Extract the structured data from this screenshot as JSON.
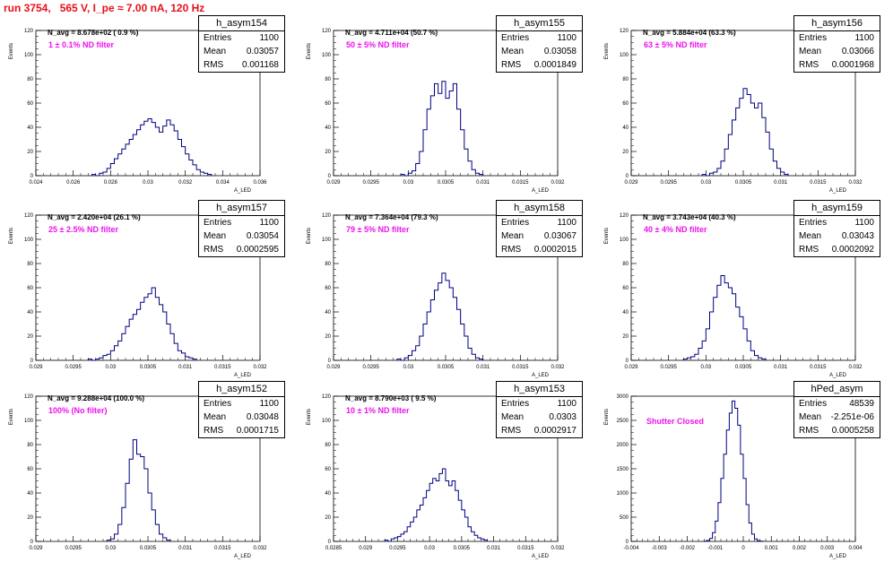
{
  "title": "run 3754,   565 V, I_pe ≈ 7.00 nA, 120 Hz",
  "colors": {
    "title": "#e8101a",
    "annotation": "#ee12ee",
    "histogram": "#000080"
  },
  "panels": [
    {
      "hist_name": "h_asym154",
      "n_avg": "N_avg = 8.678e+02 ( 0.9 %)",
      "filter_note": "1 ± 0.1% ND filter",
      "stats": [
        {
          "k": "Entries",
          "v": "1100"
        },
        {
          "k": "Mean",
          "v": "0.03057"
        },
        {
          "k": "RMS",
          "v": "0.001168"
        }
      ],
      "ylabel": "Events",
      "xlabel": "A_LED",
      "chart_data": {
        "type": "bar",
        "x_range": [
          0.024,
          0.036
        ],
        "y_range": [
          0,
          120
        ],
        "x_ticks": [
          "0.024",
          "0.026",
          "0.028",
          "0.03",
          "0.032",
          "0.034",
          "0.036"
        ],
        "y_ticks": [
          "0",
          "20",
          "40",
          "60",
          "80",
          "100",
          "120"
        ],
        "bin_edges_start": 0.027,
        "bin_width": 0.0002,
        "values": [
          1,
          0,
          2,
          3,
          6,
          10,
          14,
          18,
          22,
          26,
          30,
          34,
          38,
          42,
          45,
          47,
          44,
          40,
          36,
          41,
          46,
          42,
          37,
          30,
          24,
          18,
          13,
          9,
          5,
          3,
          2,
          1
        ]
      }
    },
    {
      "hist_name": "h_asym155",
      "n_avg": "N_avg = 4.711e+04 (50.7 %)",
      "filter_note": "50 ± 5% ND filter",
      "stats": [
        {
          "k": "Entries",
          "v": "1100"
        },
        {
          "k": "Mean",
          "v": "0.03058"
        },
        {
          "k": "RMS",
          "v": "0.0001849"
        }
      ],
      "ylabel": "Events",
      "xlabel": "A_LED",
      "chart_data": {
        "type": "bar",
        "x_range": [
          0.029,
          0.032
        ],
        "y_range": [
          0,
          120
        ],
        "x_ticks": [
          "0.029",
          "0.0295",
          "0.03",
          "0.0305",
          "0.031",
          "0.0315",
          "0.032"
        ],
        "y_ticks": [
          "0",
          "20",
          "40",
          "60",
          "80",
          "100",
          "120"
        ],
        "bin_edges_start": 0.0299,
        "bin_width": 5e-05,
        "values": [
          1,
          0,
          2,
          4,
          10,
          20,
          38,
          55,
          66,
          76,
          68,
          78,
          64,
          70,
          76,
          55,
          38,
          22,
          12,
          5,
          2,
          1
        ]
      }
    },
    {
      "hist_name": "h_asym156",
      "n_avg": "N_avg = 5.884e+04 (63.3 %)",
      "filter_note": "63 ± 5% ND filter",
      "stats": [
        {
          "k": "Entries",
          "v": "1100"
        },
        {
          "k": "Mean",
          "v": "0.03066"
        },
        {
          "k": "RMS",
          "v": "0.0001968"
        }
      ],
      "ylabel": "Events",
      "xlabel": "A_LED",
      "chart_data": {
        "type": "bar",
        "x_range": [
          0.029,
          0.032
        ],
        "y_range": [
          0,
          120
        ],
        "x_ticks": [
          "0.029",
          "0.0295",
          "0.03",
          "0.0305",
          "0.031",
          "0.0315",
          "0.032"
        ],
        "y_ticks": [
          "0",
          "20",
          "40",
          "60",
          "80",
          "100",
          "120"
        ],
        "bin_edges_start": 0.02995,
        "bin_width": 5e-05,
        "values": [
          1,
          0,
          2,
          3,
          6,
          12,
          22,
          34,
          46,
          56,
          64,
          72,
          67,
          60,
          56,
          60,
          48,
          36,
          22,
          12,
          6,
          3,
          1
        ]
      }
    },
    {
      "hist_name": "h_asym157",
      "n_avg": "N_avg = 2.420e+04 (26.1 %)",
      "filter_note": "25 ± 2.5% ND filter",
      "stats": [
        {
          "k": "Entries",
          "v": "1100"
        },
        {
          "k": "Mean",
          "v": "0.03054"
        },
        {
          "k": "RMS",
          "v": "0.0002595"
        }
      ],
      "ylabel": "Events",
      "xlabel": "A_LED",
      "chart_data": {
        "type": "bar",
        "x_range": [
          0.029,
          0.032
        ],
        "y_range": [
          0,
          120
        ],
        "x_ticks": [
          "0.029",
          "0.0295",
          "0.03",
          "0.0305",
          "0.031",
          "0.0315",
          "0.032"
        ],
        "y_ticks": [
          "0",
          "20",
          "40",
          "60",
          "80",
          "100",
          "120"
        ],
        "bin_edges_start": 0.0297,
        "bin_width": 5e-05,
        "values": [
          1,
          0,
          1,
          2,
          4,
          5,
          8,
          12,
          16,
          22,
          28,
          34,
          38,
          42,
          48,
          52,
          55,
          60,
          52,
          46,
          40,
          30,
          22,
          14,
          8,
          6,
          3,
          2,
          1
        ]
      }
    },
    {
      "hist_name": "h_asym158",
      "n_avg": "N_avg = 7.364e+04 (79.3 %)",
      "filter_note": "79 ± 5% ND filter",
      "stats": [
        {
          "k": "Entries",
          "v": "1100"
        },
        {
          "k": "Mean",
          "v": "0.03067"
        },
        {
          "k": "RMS",
          "v": "0.0002015"
        }
      ],
      "ylabel": "Events",
      "xlabel": "A_LED",
      "chart_data": {
        "type": "bar",
        "x_range": [
          0.029,
          0.032
        ],
        "y_range": [
          0,
          120
        ],
        "x_ticks": [
          "0.029",
          "0.0295",
          "0.03",
          "0.0305",
          "0.031",
          "0.0315",
          "0.032"
        ],
        "y_ticks": [
          "0",
          "20",
          "40",
          "60",
          "80",
          "100",
          "120"
        ],
        "bin_edges_start": 0.02985,
        "bin_width": 5e-05,
        "values": [
          1,
          0,
          2,
          4,
          8,
          12,
          20,
          30,
          40,
          50,
          58,
          64,
          72,
          66,
          60,
          52,
          42,
          30,
          20,
          10,
          5,
          2,
          1
        ]
      }
    },
    {
      "hist_name": "h_asym159",
      "n_avg": "N_avg = 3.743e+04 (40.3 %)",
      "filter_note": "40 ± 4% ND filter",
      "stats": [
        {
          "k": "Entries",
          "v": "1100"
        },
        {
          "k": "Mean",
          "v": "0.03043"
        },
        {
          "k": "RMS",
          "v": "0.0002092"
        }
      ],
      "ylabel": "Events",
      "xlabel": "A_LED",
      "chart_data": {
        "type": "bar",
        "x_range": [
          0.029,
          0.032
        ],
        "y_range": [
          0,
          120
        ],
        "x_ticks": [
          "0.029",
          "0.0295",
          "0.03",
          "0.0305",
          "0.031",
          "0.0315",
          "0.032"
        ],
        "y_ticks": [
          "0",
          "20",
          "40",
          "60",
          "80",
          "100",
          "120"
        ],
        "bin_edges_start": 0.0297,
        "bin_width": 5e-05,
        "values": [
          1,
          2,
          3,
          5,
          10,
          16,
          26,
          40,
          52,
          62,
          70,
          64,
          60,
          55,
          44,
          36,
          26,
          16,
          8,
          4,
          2,
          1
        ]
      }
    },
    {
      "hist_name": "h_asym152",
      "n_avg": "N_avg = 9.288e+04 (100.0 %)",
      "filter_note": "100% (No filter)",
      "stats": [
        {
          "k": "Entries",
          "v": "1100"
        },
        {
          "k": "Mean",
          "v": "0.03048"
        },
        {
          "k": "RMS",
          "v": "0.0001715"
        }
      ],
      "ylabel": "Events",
      "xlabel": "A_LED",
      "chart_data": {
        "type": "bar",
        "x_range": [
          0.029,
          0.032
        ],
        "y_range": [
          0,
          120
        ],
        "x_ticks": [
          "0.029",
          "0.0295",
          "0.03",
          "0.0305",
          "0.031",
          "0.0315",
          "0.032"
        ],
        "y_ticks": [
          "0",
          "20",
          "40",
          "60",
          "80",
          "100",
          "120"
        ],
        "bin_edges_start": 0.02995,
        "bin_width": 5e-05,
        "values": [
          1,
          2,
          6,
          14,
          28,
          48,
          68,
          84,
          72,
          70,
          60,
          40,
          26,
          14,
          6,
          3,
          1
        ]
      }
    },
    {
      "hist_name": "h_asym153",
      "n_avg": "N_avg = 8.790e+03 ( 9.5 %)",
      "filter_note": "10 ± 1% ND filter",
      "stats": [
        {
          "k": "Entries",
          "v": "1100"
        },
        {
          "k": "Mean",
          "v": "0.0303"
        },
        {
          "k": "RMS",
          "v": "0.0002917"
        }
      ],
      "ylabel": "Events",
      "xlabel": "A_LED",
      "chart_data": {
        "type": "bar",
        "x_range": [
          0.0285,
          0.032
        ],
        "y_range": [
          0,
          120
        ],
        "x_ticks": [
          "0.0285",
          "0.029",
          "0.0295",
          "0.03",
          "0.0305",
          "0.031",
          "0.0315",
          "0.032"
        ],
        "y_ticks": [
          "0",
          "20",
          "40",
          "60",
          "80",
          "100",
          "120"
        ],
        "bin_edges_start": 0.0293,
        "bin_width": 5e-05,
        "values": [
          1,
          0,
          2,
          3,
          4,
          6,
          8,
          12,
          16,
          20,
          26,
          30,
          36,
          42,
          48,
          52,
          50,
          56,
          60,
          50,
          46,
          50,
          42,
          34,
          26,
          20,
          12,
          8,
          5,
          3,
          2,
          1
        ]
      }
    },
    {
      "hist_name": "hPed_asym",
      "n_avg": "",
      "filter_note": "Shutter Closed",
      "stats": [
        {
          "k": "Entries",
          "v": "48539"
        },
        {
          "k": "Mean",
          "v": "-2.251e-06"
        },
        {
          "k": "RMS",
          "v": "0.0005258"
        }
      ],
      "ylabel": "Events",
      "xlabel": "A_LED",
      "chart_data": {
        "type": "bar",
        "x_range": [
          -0.004,
          0.004
        ],
        "y_range": [
          0,
          3000
        ],
        "x_ticks": [
          "-0.004",
          "-0.003",
          "-0.002",
          "-0.001",
          "0",
          "0.001",
          "0.002",
          "0.003",
          "0.004"
        ],
        "y_ticks": [
          "0",
          "500",
          "1000",
          "1500",
          "2000",
          "2500",
          "3000"
        ],
        "bin_edges_start": -0.0014,
        "bin_width": 0.0001,
        "values": [
          5,
          20,
          60,
          180,
          420,
          800,
          1300,
          1800,
          2300,
          2650,
          2900,
          2750,
          2400,
          1800,
          1300,
          760,
          380,
          150,
          50,
          15,
          4
        ]
      }
    }
  ]
}
